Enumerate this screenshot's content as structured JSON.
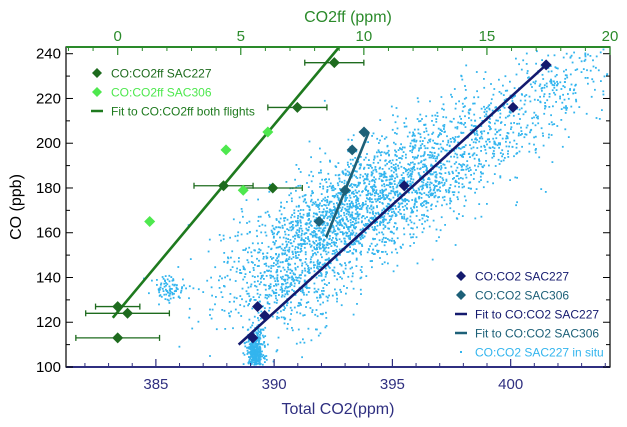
{
  "chart_data": {
    "type": "scatter",
    "title": "",
    "ylabel": "CO (ppb)",
    "xlabel_bottom": "Total CO2(ppm)",
    "xlabel_top": "CO2ff (ppm)",
    "y_axis": {
      "min": 100,
      "max": 243,
      "ticks": [
        100,
        120,
        140,
        160,
        180,
        200,
        220,
        240
      ],
      "unit": "ppb"
    },
    "x_bottom": {
      "min": 381.2,
      "max": 404.2,
      "ticks": [
        385,
        390,
        395,
        400
      ],
      "unit": "ppm"
    },
    "x_top": {
      "min": -2.1,
      "max": 20.0,
      "ticks": [
        0,
        5,
        10,
        15,
        20
      ],
      "unit": "ppm"
    },
    "colors": {
      "sac227_ff": "#1e6b1e",
      "sac306_ff": "#4ee84e",
      "fit_ff": "#1e7a1e",
      "sac227_total": "#141a6e",
      "sac306_total": "#1d6078",
      "in_situ": "#33b5ee",
      "top_axis": "#2a8a2a",
      "bottom_axis": "#2f2f80"
    },
    "series": [
      {
        "name": "CO:CO2ff SAC227",
        "axis": "top",
        "marker": "diamond",
        "color": "#1e6b1e",
        "points": [
          {
            "x": 0.0,
            "y": 127,
            "xerr": 0.9
          },
          {
            "x": 0.0,
            "y": 113,
            "xerr": 1.7
          },
          {
            "x": 0.4,
            "y": 124,
            "xerr": 1.7
          },
          {
            "x": 4.3,
            "y": 181,
            "xerr": 1.2
          },
          {
            "x": 6.3,
            "y": 180,
            "xerr": 1.2
          },
          {
            "x": 7.3,
            "y": 216,
            "xerr": 1.2
          },
          {
            "x": 8.8,
            "y": 236,
            "xerr": 1.2
          }
        ]
      },
      {
        "name": "CO:CO2ff SAC306",
        "axis": "top",
        "marker": "diamond",
        "color": "#4ee84e",
        "points": [
          {
            "x": 1.3,
            "y": 165
          },
          {
            "x": 4.4,
            "y": 197
          },
          {
            "x": 5.1,
            "y": 179
          },
          {
            "x": 6.1,
            "y": 205
          }
        ]
      },
      {
        "name": "CO:CO2 SAC227",
        "axis": "bottom",
        "marker": "diamond",
        "color": "#141a6e",
        "points": [
          {
            "x": 389.1,
            "y": 113
          },
          {
            "x": 389.3,
            "y": 127
          },
          {
            "x": 389.6,
            "y": 123
          },
          {
            "x": 395.5,
            "y": 181
          },
          {
            "x": 400.1,
            "y": 216
          },
          {
            "x": 401.5,
            "y": 235
          }
        ]
      },
      {
        "name": "CO:CO2 SAC306",
        "axis": "bottom",
        "marker": "diamond",
        "color": "#1d6078",
        "points": [
          {
            "x": 391.9,
            "y": 165
          },
          {
            "x": 393.0,
            "y": 179
          },
          {
            "x": 393.3,
            "y": 197
          },
          {
            "x": 393.8,
            "y": 205
          }
        ]
      }
    ],
    "fits": [
      {
        "name": "Fit to CO:CO2ff both flights",
        "axis": "top",
        "color": "#1e7a1e",
        "x": [
          -0.2,
          9.0
        ],
        "y": [
          122,
          243
        ]
      },
      {
        "name": "Fit to CO:CO2 SAC227",
        "axis": "bottom",
        "color": "#141a6e",
        "x": [
          388.5,
          401.6
        ],
        "y": [
          110,
          236
        ]
      },
      {
        "name": "Fit to CO:CO2 SAC306",
        "axis": "bottom",
        "color": "#1d6078",
        "x": [
          392.2,
          394.0
        ],
        "y": [
          158,
          205
        ]
      }
    ],
    "in_situ": {
      "name": "CO:CO2 SAC227 in situ",
      "color": "#33b5ee",
      "description_clusters": [
        {
          "cx": 392.5,
          "cy": 163,
          "sx": 2.3,
          "sy": 13,
          "n": 1300
        },
        {
          "cx": 394.5,
          "cy": 175,
          "sx": 2.4,
          "sy": 13,
          "n": 700
        },
        {
          "cx": 396.5,
          "cy": 190,
          "sx": 2.2,
          "sy": 14,
          "n": 450
        },
        {
          "cx": 399.0,
          "cy": 207,
          "sx": 2.0,
          "sy": 13,
          "n": 300
        },
        {
          "cx": 402.0,
          "cy": 225,
          "sx": 1.3,
          "sy": 9,
          "n": 160
        },
        {
          "cx": 389.2,
          "cy": 107,
          "sx": 0.18,
          "sy": 5,
          "n": 420
        },
        {
          "cx": 390.6,
          "cy": 135,
          "sx": 1.2,
          "sy": 10,
          "n": 320
        },
        {
          "cx": 385.6,
          "cy": 135,
          "sx": 0.35,
          "sy": 3,
          "n": 80
        }
      ]
    },
    "legend_top_left": [
      {
        "label": "CO:CO2ff SAC227",
        "color": "#1e6b1e",
        "marker": "diamond"
      },
      {
        "label": "CO:CO2ff SAC306",
        "color": "#4ee84e",
        "marker": "diamond"
      },
      {
        "label": "Fit to CO:CO2ff both flights",
        "color": "#1e7a1e",
        "marker": "line"
      }
    ],
    "legend_bottom_right": [
      {
        "label": "CO:CO2 SAC227",
        "color": "#141a6e",
        "marker": "diamond"
      },
      {
        "label": "CO:CO2 SAC306",
        "color": "#1d6078",
        "marker": "diamond"
      },
      {
        "label": "Fit to CO:CO2 SAC227",
        "color": "#141a6e",
        "marker": "line"
      },
      {
        "label": "Fit to CO:CO2 SAC306",
        "color": "#1d6078",
        "marker": "line"
      },
      {
        "label": "CO:CO2 SAC227 in situ",
        "color": "#33b5ee",
        "marker": "dot"
      }
    ]
  }
}
